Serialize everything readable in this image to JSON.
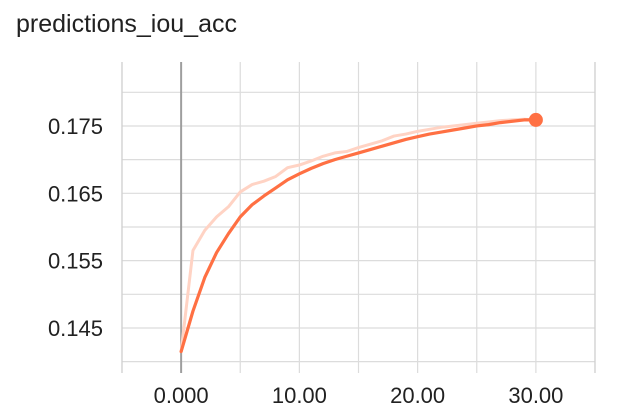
{
  "chart_data": {
    "type": "line",
    "title": "predictions_iou_acc",
    "xlabel": "",
    "ylabel": "",
    "xlim": [
      -5,
      35
    ],
    "ylim": [
      0.1395,
      0.1845
    ],
    "x_ticks": [
      0,
      10,
      20,
      30
    ],
    "x_tick_labels": [
      "0.000",
      "10.00",
      "20.00",
      "30.00"
    ],
    "y_ticks": [
      0.145,
      0.155,
      0.165,
      0.175
    ],
    "y_tick_labels": [
      "0.145",
      "0.155",
      "0.165",
      "0.175"
    ],
    "grid": true,
    "legend": "none",
    "series": [
      {
        "role": "raw",
        "color": "#ffd3c4",
        "x": [
          0,
          1,
          2,
          3,
          4,
          5,
          6,
          7,
          8,
          9,
          10,
          11,
          12,
          13,
          14,
          15,
          16,
          17,
          18,
          19,
          20,
          21,
          22,
          23,
          24,
          25,
          26,
          27,
          28,
          29,
          30
        ],
        "y": [
          0.1415,
          0.1565,
          0.1595,
          0.1615,
          0.163,
          0.1652,
          0.1663,
          0.1668,
          0.1675,
          0.1688,
          0.1692,
          0.1698,
          0.1705,
          0.171,
          0.1712,
          0.1718,
          0.1723,
          0.1728,
          0.1735,
          0.1738,
          0.1742,
          0.1745,
          0.1748,
          0.175,
          0.1752,
          0.1754,
          0.1756,
          0.1758,
          0.1759,
          0.176,
          0.1759
        ]
      },
      {
        "role": "smoothed",
        "color": "#ff7043",
        "x": [
          0,
          1,
          2,
          3,
          4,
          5,
          6,
          7,
          8,
          9,
          10,
          11,
          12,
          13,
          14,
          15,
          16,
          17,
          18,
          19,
          20,
          21,
          22,
          23,
          24,
          25,
          26,
          27,
          28,
          29,
          30
        ],
        "y": [
          0.1415,
          0.1475,
          0.1525,
          0.1562,
          0.159,
          0.1615,
          0.1633,
          0.1646,
          0.1658,
          0.167,
          0.1679,
          0.1687,
          0.1694,
          0.17,
          0.1705,
          0.171,
          0.1715,
          0.172,
          0.1725,
          0.173,
          0.1734,
          0.1738,
          0.1741,
          0.1744,
          0.1747,
          0.175,
          0.1752,
          0.1755,
          0.1757,
          0.1759,
          0.1759
        ]
      }
    ],
    "last_point": {
      "x": 30,
      "y": 0.1759,
      "color": "#ff7043"
    }
  }
}
